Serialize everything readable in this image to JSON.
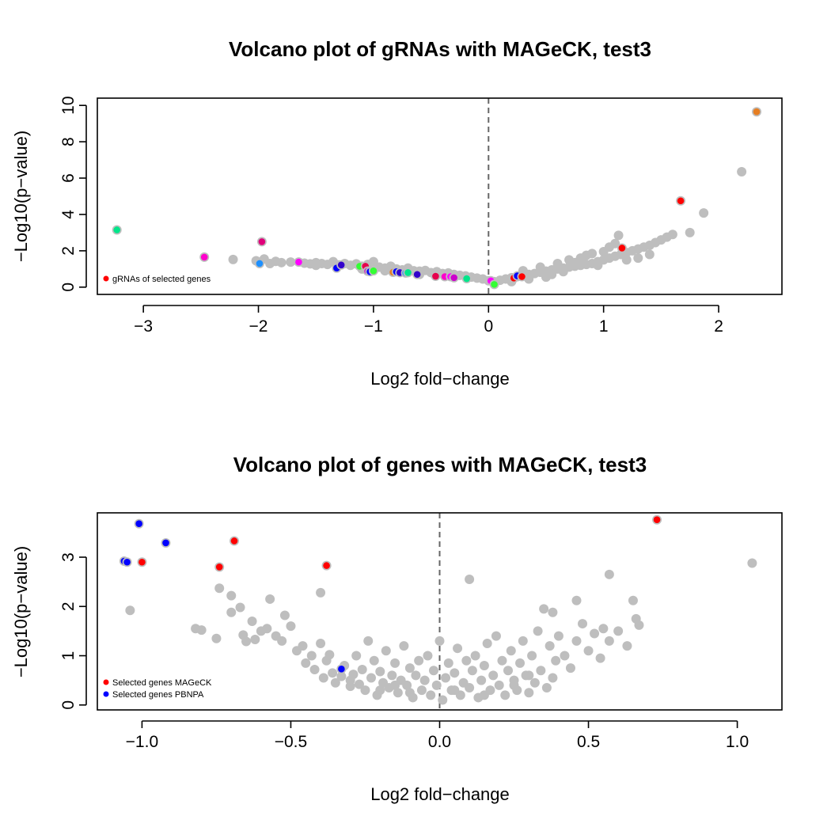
{
  "colors": {
    "background": "#ffffff",
    "background_points": "#bebebe",
    "selected_mageck": "#ff0000",
    "selected_pbnpa": "#0000ff",
    "reference_line": "#666666"
  },
  "chart_data": [
    {
      "type": "scatter",
      "title": "Volcano plot of gRNAs with MAGeCK, test3",
      "xlabel": "Log2 fold−change",
      "ylabel": "−Log10(p−value)",
      "xlim": [
        -3.4,
        2.55
      ],
      "ylim": [
        -0.4,
        10.4
      ],
      "xticks": [
        -3,
        -2,
        -1,
        0,
        1,
        2
      ],
      "xtick_labels": [
        "−3",
        "−2",
        "−1",
        "0",
        "1",
        "2"
      ],
      "yticks": [
        0,
        2,
        4,
        6,
        8,
        10
      ],
      "ytick_labels": [
        "0",
        "2",
        "4",
        "6",
        "8",
        "10"
      ],
      "vline_x": 0,
      "legend_position": "bottom-left",
      "legend": [
        {
          "label": "gRNAs of selected genes",
          "color": "#ff0000"
        }
      ],
      "background_points": [
        [
          -2.22,
          1.52
        ],
        [
          -2.02,
          1.45
        ],
        [
          -1.95,
          1.55
        ],
        [
          -1.9,
          1.3
        ],
        [
          -1.85,
          1.42
        ],
        [
          -1.8,
          1.35
        ],
        [
          -1.72,
          1.38
        ],
        [
          -1.6,
          1.32
        ],
        [
          -1.55,
          1.28
        ],
        [
          -1.5,
          1.35
        ],
        [
          -1.45,
          1.3
        ],
        [
          -1.4,
          1.25
        ],
        [
          -1.35,
          1.4
        ],
        [
          -1.3,
          1.22
        ],
        [
          -1.25,
          1.3
        ],
        [
          -1.2,
          1.2
        ],
        [
          -1.15,
          1.28
        ],
        [
          -1.1,
          1.15
        ],
        [
          -1.05,
          1.25
        ],
        [
          -1.0,
          1.4
        ],
        [
          -0.95,
          1.1
        ],
        [
          -0.9,
          1.05
        ],
        [
          -0.85,
          1.15
        ],
        [
          -0.8,
          1.0
        ],
        [
          -0.75,
          0.95
        ],
        [
          -0.7,
          1.05
        ],
        [
          -0.65,
          0.9
        ],
        [
          -0.6,
          0.88
        ],
        [
          -0.55,
          0.92
        ],
        [
          -0.5,
          0.8
        ],
        [
          -0.45,
          0.85
        ],
        [
          -0.4,
          0.75
        ],
        [
          -0.35,
          0.78
        ],
        [
          -0.3,
          0.7
        ],
        [
          -0.25,
          0.65
        ],
        [
          -0.2,
          0.62
        ],
        [
          -0.15,
          0.55
        ],
        [
          -0.1,
          0.5
        ],
        [
          -0.05,
          0.45
        ],
        [
          0.0,
          0.35
        ],
        [
          0.05,
          0.3
        ],
        [
          0.1,
          0.38
        ],
        [
          0.15,
          0.45
        ],
        [
          0.2,
          0.52
        ],
        [
          0.25,
          0.58
        ],
        [
          0.3,
          0.62
        ],
        [
          0.35,
          0.7
        ],
        [
          0.4,
          0.75
        ],
        [
          0.45,
          0.82
        ],
        [
          0.5,
          0.88
        ],
        [
          0.55,
          0.95
        ],
        [
          0.6,
          1.0
        ],
        [
          0.65,
          1.05
        ],
        [
          0.7,
          1.1
        ],
        [
          0.75,
          1.15
        ],
        [
          0.8,
          1.2
        ],
        [
          0.85,
          1.25
        ],
        [
          0.9,
          1.3
        ],
        [
          0.95,
          1.4
        ],
        [
          1.0,
          1.5
        ],
        [
          1.05,
          1.6
        ],
        [
          1.1,
          1.7
        ],
        [
          1.15,
          1.8
        ],
        [
          1.2,
          1.9
        ],
        [
          1.25,
          2.0
        ],
        [
          1.3,
          2.1
        ],
        [
          1.35,
          2.2
        ],
        [
          1.4,
          2.3
        ],
        [
          1.45,
          2.45
        ],
        [
          1.5,
          2.6
        ],
        [
          1.55,
          2.75
        ],
        [
          1.6,
          2.9
        ],
        [
          0.3,
          0.9
        ],
        [
          0.45,
          1.1
        ],
        [
          0.6,
          1.3
        ],
        [
          0.7,
          1.5
        ],
        [
          0.8,
          1.6
        ],
        [
          0.85,
          1.75
        ],
        [
          0.9,
          1.85
        ],
        [
          1.0,
          1.95
        ],
        [
          1.05,
          2.2
        ],
        [
          1.1,
          2.4
        ],
        [
          1.13,
          2.85
        ],
        [
          0.75,
          1.35
        ],
        [
          0.95,
          1.2
        ],
        [
          1.2,
          1.5
        ],
        [
          1.3,
          1.6
        ],
        [
          1.4,
          1.8
        ],
        [
          0.55,
          0.7
        ],
        [
          0.65,
          0.85
        ],
        [
          0.2,
          0.3
        ],
        [
          0.35,
          0.45
        ],
        [
          0.5,
          0.55
        ],
        [
          -0.9,
          0.9
        ],
        [
          -1.1,
          1.0
        ],
        [
          -0.6,
          0.7
        ],
        [
          -1.5,
          1.2
        ],
        [
          1.75,
          3.0
        ],
        [
          1.87,
          4.08
        ],
        [
          2.2,
          6.35
        ]
      ],
      "highlight_points": [
        {
          "x": 2.33,
          "y": 9.65,
          "color": "#e67e22"
        },
        {
          "x": 1.67,
          "y": 4.75,
          "color": "#ff0000"
        },
        {
          "x": 1.16,
          "y": 2.15,
          "color": "#ff0000"
        },
        {
          "x": -3.23,
          "y": 3.15,
          "color": "#00e68a"
        },
        {
          "x": -2.47,
          "y": 1.65,
          "color": "#ff00cc"
        },
        {
          "x": -1.97,
          "y": 2.5,
          "color": "#e0007a"
        },
        {
          "x": -1.99,
          "y": 1.3,
          "color": "#1e90ff"
        },
        {
          "x": -1.65,
          "y": 1.38,
          "color": "#ff00ff"
        },
        {
          "x": -1.32,
          "y": 1.05,
          "color": "#0000ff"
        },
        {
          "x": -1.28,
          "y": 1.22,
          "color": "#3300cc"
        },
        {
          "x": -1.12,
          "y": 1.15,
          "color": "#33ff33"
        },
        {
          "x": -1.07,
          "y": 1.15,
          "color": "#e6004c"
        },
        {
          "x": -1.05,
          "y": 0.88,
          "color": "#cc00cc"
        },
        {
          "x": -1.03,
          "y": 0.85,
          "color": "#0000ff"
        },
        {
          "x": -1.0,
          "y": 0.9,
          "color": "#33ff33"
        },
        {
          "x": -0.83,
          "y": 0.82,
          "color": "#e67e22"
        },
        {
          "x": -0.8,
          "y": 0.85,
          "color": "#0000ff"
        },
        {
          "x": -0.77,
          "y": 0.8,
          "color": "#3300cc"
        },
        {
          "x": -0.72,
          "y": 0.78,
          "color": "#1e90ff"
        },
        {
          "x": -0.7,
          "y": 0.8,
          "color": "#00e68a"
        },
        {
          "x": -0.62,
          "y": 0.7,
          "color": "#3300cc"
        },
        {
          "x": -0.46,
          "y": 0.6,
          "color": "#e6004c"
        },
        {
          "x": -0.38,
          "y": 0.58,
          "color": "#ff00cc"
        },
        {
          "x": -0.33,
          "y": 0.58,
          "color": "#ff00ff"
        },
        {
          "x": -0.3,
          "y": 0.52,
          "color": "#cc00cc"
        },
        {
          "x": -0.19,
          "y": 0.47,
          "color": "#00e68a"
        },
        {
          "x": 0.02,
          "y": 0.35,
          "color": "#ff00ff"
        },
        {
          "x": 0.05,
          "y": 0.15,
          "color": "#33ff33"
        },
        {
          "x": 0.22,
          "y": 0.5,
          "color": "#ff0000"
        },
        {
          "x": 0.25,
          "y": 0.62,
          "color": "#0000ff"
        },
        {
          "x": 0.29,
          "y": 0.58,
          "color": "#ff0000"
        }
      ]
    },
    {
      "type": "scatter",
      "title": "Volcano plot of genes with MAGeCK, test3",
      "xlabel": "Log2 fold−change",
      "ylabel": "−Log10(p−value)",
      "xlim": [
        -1.15,
        1.15
      ],
      "ylim": [
        -0.1,
        3.9
      ],
      "xticks": [
        -1.0,
        -0.5,
        0.0,
        0.5,
        1.0
      ],
      "xtick_labels": [
        "−1.0",
        "−0.5",
        "0.0",
        "0.5",
        "1.0"
      ],
      "yticks": [
        0,
        1,
        2,
        3
      ],
      "ytick_labels": [
        "0",
        "1",
        "2",
        "3"
      ],
      "vline_x": 0,
      "legend_position": "bottom-left",
      "legend": [
        {
          "label": "Selected genes MAGeCK",
          "color": "#ff0000"
        },
        {
          "label": "Selected genes PBNPA",
          "color": "#0000ff"
        }
      ],
      "background_points": [
        [
          -1.04,
          1.92
        ],
        [
          -0.82,
          1.55
        ],
        [
          -0.8,
          1.52
        ],
        [
          -0.75,
          1.35
        ],
        [
          -0.74,
          2.37
        ],
        [
          -0.7,
          2.22
        ],
        [
          -0.7,
          1.88
        ],
        [
          -0.67,
          1.98
        ],
        [
          -0.66,
          1.42
        ],
        [
          -0.65,
          1.29
        ],
        [
          -0.63,
          1.7
        ],
        [
          -0.62,
          1.33
        ],
        [
          -0.6,
          1.5
        ],
        [
          -0.58,
          1.55
        ],
        [
          -0.57,
          2.15
        ],
        [
          -0.55,
          1.4
        ],
        [
          -0.53,
          1.3
        ],
        [
          -0.52,
          1.82
        ],
        [
          -0.5,
          1.6
        ],
        [
          -0.48,
          1.1
        ],
        [
          -0.46,
          1.2
        ],
        [
          -0.45,
          0.85
        ],
        [
          -0.43,
          1.0
        ],
        [
          -0.42,
          0.72
        ],
        [
          -0.4,
          2.28
        ],
        [
          -0.4,
          1.25
        ],
        [
          -0.39,
          0.55
        ],
        [
          -0.38,
          0.9
        ],
        [
          -0.37,
          1.02
        ],
        [
          -0.36,
          0.65
        ],
        [
          -0.35,
          0.45
        ],
        [
          -0.33,
          0.58
        ],
        [
          -0.32,
          0.8
        ],
        [
          -0.3,
          0.38
        ],
        [
          -0.29,
          0.62
        ],
        [
          -0.28,
          1.0
        ],
        [
          -0.27,
          0.42
        ],
        [
          -0.26,
          0.72
        ],
        [
          -0.25,
          0.3
        ],
        [
          -0.24,
          1.3
        ],
        [
          -0.23,
          0.55
        ],
        [
          -0.22,
          0.9
        ],
        [
          -0.21,
          0.2
        ],
        [
          -0.2,
          0.68
        ],
        [
          -0.19,
          0.45
        ],
        [
          -0.18,
          1.1
        ],
        [
          -0.17,
          0.35
        ],
        [
          -0.16,
          0.6
        ],
        [
          -0.15,
          0.85
        ],
        [
          -0.14,
          0.25
        ],
        [
          -0.13,
          0.5
        ],
        [
          -0.12,
          1.2
        ],
        [
          -0.11,
          0.4
        ],
        [
          -0.1,
          0.75
        ],
        [
          -0.09,
          0.15
        ],
        [
          -0.08,
          0.6
        ],
        [
          -0.07,
          0.9
        ],
        [
          -0.06,
          0.3
        ],
        [
          -0.05,
          0.5
        ],
        [
          -0.04,
          1.0
        ],
        [
          -0.03,
          0.2
        ],
        [
          -0.02,
          0.7
        ],
        [
          -0.01,
          0.4
        ],
        [
          0.0,
          1.3
        ],
        [
          0.01,
          0.1
        ],
        [
          0.02,
          0.55
        ],
        [
          0.03,
          0.85
        ],
        [
          0.04,
          0.3
        ],
        [
          0.05,
          0.65
        ],
        [
          0.06,
          1.15
        ],
        [
          0.07,
          0.2
        ],
        [
          0.08,
          0.45
        ],
        [
          0.09,
          0.9
        ],
        [
          0.1,
          2.55
        ],
        [
          0.1,
          0.35
        ],
        [
          0.11,
          0.7
        ],
        [
          0.12,
          1.0
        ],
        [
          0.13,
          0.15
        ],
        [
          0.14,
          0.5
        ],
        [
          0.15,
          0.8
        ],
        [
          0.16,
          1.25
        ],
        [
          0.17,
          0.3
        ],
        [
          0.18,
          0.6
        ],
        [
          0.19,
          1.4
        ],
        [
          0.2,
          0.4
        ],
        [
          0.21,
          0.9
        ],
        [
          0.22,
          0.2
        ],
        [
          0.23,
          0.7
        ],
        [
          0.24,
          1.1
        ],
        [
          0.25,
          0.5
        ],
        [
          0.26,
          0.3
        ],
        [
          0.27,
          0.85
        ],
        [
          0.28,
          1.3
        ],
        [
          0.29,
          0.6
        ],
        [
          0.3,
          0.25
        ],
        [
          0.31,
          1.0
        ],
        [
          0.32,
          0.45
        ],
        [
          0.33,
          1.5
        ],
        [
          0.34,
          0.7
        ],
        [
          0.35,
          1.95
        ],
        [
          0.36,
          0.35
        ],
        [
          0.37,
          1.2
        ],
        [
          0.38,
          1.88
        ],
        [
          0.38,
          0.55
        ],
        [
          0.39,
          0.9
        ],
        [
          0.4,
          1.4
        ],
        [
          0.42,
          1.0
        ],
        [
          0.44,
          0.75
        ],
        [
          0.46,
          2.12
        ],
        [
          0.46,
          1.3
        ],
        [
          0.48,
          1.65
        ],
        [
          0.5,
          1.1
        ],
        [
          0.52,
          1.45
        ],
        [
          0.54,
          0.95
        ],
        [
          0.55,
          1.55
        ],
        [
          0.57,
          2.65
        ],
        [
          0.57,
          1.3
        ],
        [
          0.6,
          1.5
        ],
        [
          0.63,
          1.2
        ],
        [
          0.65,
          2.12
        ],
        [
          0.66,
          1.75
        ],
        [
          0.67,
          1.62
        ],
        [
          1.05,
          2.88
        ],
        [
          -0.2,
          0.3
        ],
        [
          -0.1,
          0.25
        ],
        [
          0.15,
          0.2
        ],
        [
          0.25,
          0.4
        ],
        [
          -0.3,
          0.5
        ],
        [
          0.05,
          0.3
        ],
        [
          -0.15,
          0.4
        ],
        [
          0.3,
          0.6
        ]
      ],
      "mageck_points": [
        [
          -1.0,
          2.9
        ],
        [
          -0.74,
          2.8
        ],
        [
          -0.69,
          3.33
        ],
        [
          -0.38,
          2.83
        ],
        [
          0.73,
          3.76
        ]
      ],
      "pbnpa_points": [
        [
          -1.06,
          2.92
        ],
        [
          -1.05,
          2.9
        ],
        [
          -1.01,
          3.68
        ],
        [
          -0.92,
          3.29
        ],
        [
          -0.33,
          0.73
        ]
      ]
    }
  ]
}
